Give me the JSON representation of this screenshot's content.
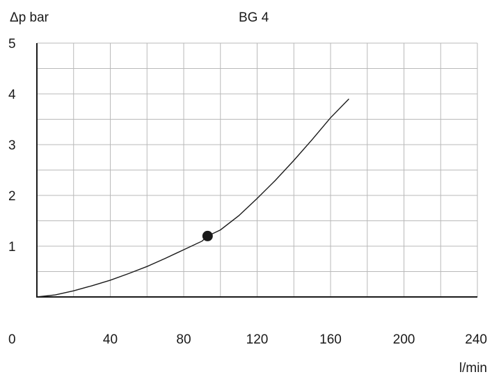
{
  "chart_data": {
    "type": "line",
    "title": "BG 4",
    "ylabel": "Δp bar",
    "xlabel": "l/min",
    "xlim": [
      0,
      240
    ],
    "ylim": [
      0,
      5
    ],
    "x_ticks": [
      0,
      40,
      80,
      120,
      160,
      200,
      240
    ],
    "x_tick_labels": [
      "0",
      "40",
      "80",
      "120",
      "160",
      "200",
      "240"
    ],
    "y_ticks": [
      1,
      2,
      3,
      4,
      5
    ],
    "y_tick_labels": [
      "1",
      "2",
      "3",
      "4",
      "5"
    ],
    "grid": true,
    "series": [
      {
        "x": [
          0,
          10,
          20,
          30,
          40,
          50,
          60,
          70,
          80,
          90,
          93,
          100,
          110,
          120,
          130,
          140,
          150,
          160,
          170
        ],
        "y": [
          0,
          0.04,
          0.12,
          0.22,
          0.33,
          0.46,
          0.6,
          0.76,
          0.93,
          1.1,
          1.2,
          1.32,
          1.6,
          1.94,
          2.3,
          2.69,
          3.1,
          3.53,
          3.9
        ]
      }
    ],
    "markers": [
      {
        "x": 93,
        "y": 1.2
      }
    ]
  }
}
